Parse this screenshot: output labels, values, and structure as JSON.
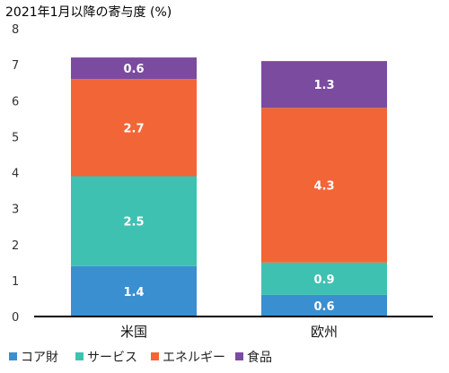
{
  "chart_data": {
    "type": "bar",
    "stacked": true,
    "title": "2021年1月以降の寄与度 (%)",
    "categories": [
      "米国",
      "欧州"
    ],
    "ylim": [
      0,
      8
    ],
    "yticks": [
      "0",
      "1",
      "2",
      "3",
      "4",
      "5",
      "6",
      "7",
      "8"
    ],
    "grid": false,
    "legend_position": "bottom",
    "series": [
      {
        "name": "コア財",
        "color": "#3a8fd0",
        "values": [
          1.4,
          0.6
        ],
        "labels": [
          "1.4",
          "0.6"
        ]
      },
      {
        "name": "サービス",
        "color": "#3fc1b2",
        "values": [
          2.5,
          0.9
        ],
        "labels": [
          "2.5",
          "0.9"
        ]
      },
      {
        "name": "エネルギー",
        "color": "#f26536",
        "values": [
          2.7,
          4.3
        ],
        "labels": [
          "2.7",
          "4.3"
        ]
      },
      {
        "name": "食品",
        "color": "#7b4ba0",
        "values": [
          0.6,
          1.3
        ],
        "labels": [
          "0.6",
          "1.3"
        ]
      }
    ]
  }
}
